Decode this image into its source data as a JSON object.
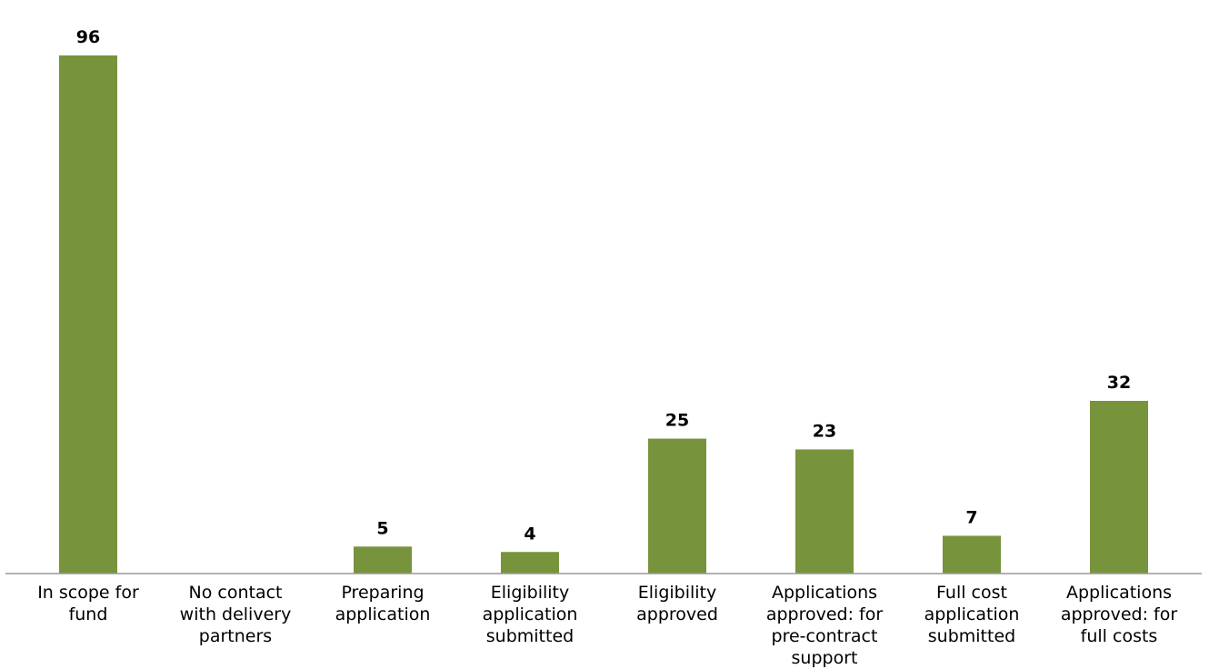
{
  "chart_data": {
    "type": "bar",
    "categories": [
      [
        "In scope for",
        "fund"
      ],
      [
        "No contact",
        "with delivery",
        "partners"
      ],
      [
        "Preparing",
        "application"
      ],
      [
        "Eligibility",
        "application",
        "submitted"
      ],
      [
        "Eligibility",
        "approved"
      ],
      [
        "Applications",
        "approved: for",
        "pre-contract",
        "support"
      ],
      [
        "Full cost",
        "application",
        "submitted"
      ],
      [
        "Applications",
        "approved: for",
        "full costs"
      ]
    ],
    "values": [
      96,
      0,
      5,
      4,
      25,
      23,
      7,
      32
    ],
    "value_labels": [
      "96",
      "",
      "5",
      "4",
      "25",
      "23",
      "7",
      "32"
    ],
    "title": "",
    "xlabel": "",
    "ylabel": "",
    "ylim": [
      0,
      96
    ],
    "grid": false,
    "bar_color": "#77933c",
    "axis_color": "#999999"
  }
}
